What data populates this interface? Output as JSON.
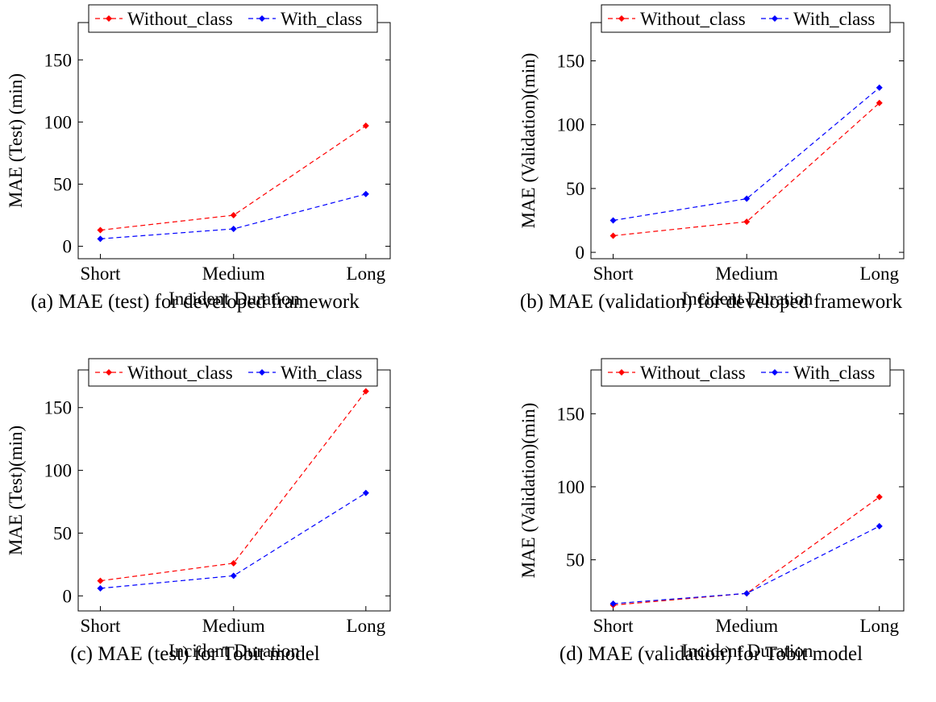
{
  "colors": {
    "without_class": "#ff0000",
    "with_class": "#0000ff"
  },
  "chart_data": [
    {
      "type": "line",
      "caption": "(a) MAE (test) for developed framework",
      "xlabel": "Incident Duration",
      "ylabel": "MAE (Test) (min)",
      "categories": [
        "Short",
        "Medium",
        "Long"
      ],
      "ylim": [
        -10,
        180
      ],
      "yticks": [
        0,
        50,
        100,
        150
      ],
      "legend_position": "top",
      "series": [
        {
          "name": "Without_class",
          "values": [
            13,
            25,
            97
          ]
        },
        {
          "name": "With_class",
          "values": [
            6,
            14,
            42
          ]
        }
      ]
    },
    {
      "type": "line",
      "caption": "(b) MAE (validation) for developed framework",
      "xlabel": "Incident Duration",
      "ylabel": "MAE (Validation)(min)",
      "categories": [
        "Short",
        "Medium",
        "Long"
      ],
      "ylim": [
        -5,
        180
      ],
      "yticks": [
        0,
        50,
        100,
        150
      ],
      "legend_position": "top",
      "series": [
        {
          "name": "Without_class",
          "values": [
            13,
            24,
            117
          ]
        },
        {
          "name": "With_class",
          "values": [
            25,
            42,
            129
          ]
        }
      ]
    },
    {
      "type": "line",
      "caption": "(c) MAE (test) for Tobit model",
      "xlabel": "Incident Duration",
      "ylabel": "MAE (Test)(min)",
      "categories": [
        "Short",
        "Medium",
        "Long"
      ],
      "ylim": [
        -12,
        180
      ],
      "yticks": [
        0,
        50,
        100,
        150
      ],
      "legend_position": "top",
      "series": [
        {
          "name": "Without_class",
          "values": [
            12,
            26,
            163
          ]
        },
        {
          "name": "With_class",
          "values": [
            6,
            16,
            82
          ]
        }
      ]
    },
    {
      "type": "line",
      "caption": "(d) MAE (validation) for Tobit model",
      "xlabel": "Incident Duration",
      "ylabel": "MAE (Validation)(min)",
      "categories": [
        "Short",
        "Medium",
        "Long"
      ],
      "ylim": [
        15,
        180
      ],
      "yticks": [
        50,
        100,
        150
      ],
      "legend_position": "top",
      "series": [
        {
          "name": "Without_class",
          "values": [
            19,
            27,
            93
          ]
        },
        {
          "name": "With_class",
          "values": [
            20,
            27,
            73
          ]
        }
      ]
    }
  ]
}
